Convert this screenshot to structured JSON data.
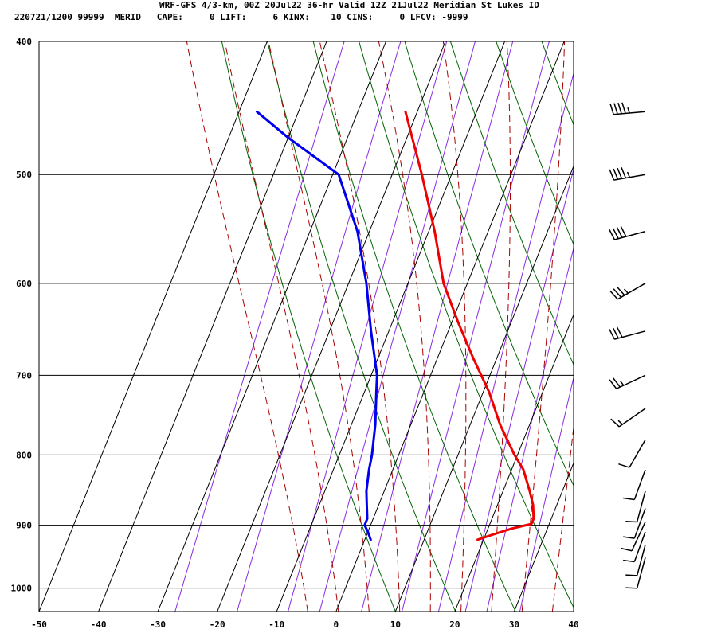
{
  "header": {
    "title": "WRF-GFS 4/3-km, 00Z 20Jul22 36-hr Valid 12Z 21Jul22 Meridian St Lukes ID",
    "params": "220721/1200 99999  MERID   CAPE:     0 LIFT:     6 KINX:    10 CINS:     0 LFCV: -9999"
  },
  "chart_data": {
    "type": "line",
    "title": "WRF-GFS 4/3-km, 00Z 20Jul22 36-hr Valid 12Z 21Jul22 Meridian St Lukes ID",
    "x_axis": {
      "label": "",
      "range": [
        -50,
        40
      ],
      "ticks": [
        -50,
        -40,
        -30,
        -20,
        -10,
        0,
        10,
        20,
        30,
        40
      ]
    },
    "y_axis": {
      "label": "",
      "scale": "log",
      "inverted": true,
      "range": [
        1040,
        400
      ],
      "ticks": [
        400,
        500,
        600,
        700,
        800,
        900,
        1000
      ]
    },
    "grid": true,
    "series": [
      {
        "color": "#ee0000",
        "points": [
          {
            "p": 922,
            "t": 19
          },
          {
            "p": 915,
            "t": 21
          },
          {
            "p": 905,
            "t": 24
          },
          {
            "p": 898,
            "t": 27
          },
          {
            "p": 890,
            "t": 27
          },
          {
            "p": 870,
            "t": 26
          },
          {
            "p": 850,
            "t": 24.5
          },
          {
            "p": 820,
            "t": 22
          },
          {
            "p": 800,
            "t": 19.5
          },
          {
            "p": 760,
            "t": 15
          },
          {
            "p": 720,
            "t": 11
          },
          {
            "p": 680,
            "t": 6
          },
          {
            "p": 640,
            "t": 1
          },
          {
            "p": 600,
            "t": -4
          },
          {
            "p": 550,
            "t": -9
          },
          {
            "p": 500,
            "t": -15
          },
          {
            "p": 450,
            "t": -22
          }
        ]
      },
      {
        "color": "#0000ee",
        "points": [
          {
            "p": 922,
            "t": 1
          },
          {
            "p": 910,
            "t": 0
          },
          {
            "p": 900,
            "t": -1
          },
          {
            "p": 890,
            "t": -1
          },
          {
            "p": 870,
            "t": -2
          },
          {
            "p": 850,
            "t": -3
          },
          {
            "p": 820,
            "t": -4
          },
          {
            "p": 800,
            "t": -4.5
          },
          {
            "p": 760,
            "t": -6
          },
          {
            "p": 720,
            "t": -8
          },
          {
            "p": 700,
            "t": -9
          },
          {
            "p": 650,
            "t": -13
          },
          {
            "p": 600,
            "t": -17
          },
          {
            "p": 550,
            "t": -22
          },
          {
            "p": 500,
            "t": -29
          },
          {
            "p": 470,
            "t": -40
          },
          {
            "p": 450,
            "t": -47
          }
        ]
      }
    ],
    "background_lines": {
      "isotherms_deg_c": [
        -50,
        -40,
        -30,
        -20,
        -10,
        0,
        10,
        20,
        30,
        40
      ],
      "isotherm_color": "#000000",
      "dry_adiabats_theta_k": [
        280,
        290,
        300,
        310,
        320,
        330,
        340,
        350,
        360
      ],
      "dry_adiabat_color": "#006600",
      "moist_adiabats_thetae_k": [
        265,
        270,
        275,
        280,
        285,
        290,
        295,
        300,
        305,
        310,
        315
      ],
      "moist_adiabat_color": "#aa0000",
      "mixing_ratio_g_per_kg": [
        0.4,
        1,
        2,
        3,
        5,
        8,
        12,
        16,
        20,
        28
      ],
      "mixing_ratio_color": "#8a2be2"
    },
    "wind_barbs": [
      {
        "p": 450,
        "speed_kt": 45,
        "dir_deg": 265
      },
      {
        "p": 500,
        "speed_kt": 45,
        "dir_deg": 260
      },
      {
        "p": 550,
        "speed_kt": 40,
        "dir_deg": 255
      },
      {
        "p": 600,
        "speed_kt": 35,
        "dir_deg": 240
      },
      {
        "p": 650,
        "speed_kt": 30,
        "dir_deg": 255
      },
      {
        "p": 700,
        "speed_kt": 25,
        "dir_deg": 245
      },
      {
        "p": 740,
        "speed_kt": 15,
        "dir_deg": 235
      },
      {
        "p": 780,
        "speed_kt": 10,
        "dir_deg": 210
      },
      {
        "p": 820,
        "speed_kt": 10,
        "dir_deg": 200
      },
      {
        "p": 850,
        "speed_kt": 10,
        "dir_deg": 195
      },
      {
        "p": 875,
        "speed_kt": 10,
        "dir_deg": 200
      },
      {
        "p": 895,
        "speed_kt": 10,
        "dir_deg": 205
      },
      {
        "p": 910,
        "speed_kt": 10,
        "dir_deg": 200
      },
      {
        "p": 930,
        "speed_kt": 10,
        "dir_deg": 195
      },
      {
        "p": 950,
        "speed_kt": 10,
        "dir_deg": 195
      }
    ]
  }
}
